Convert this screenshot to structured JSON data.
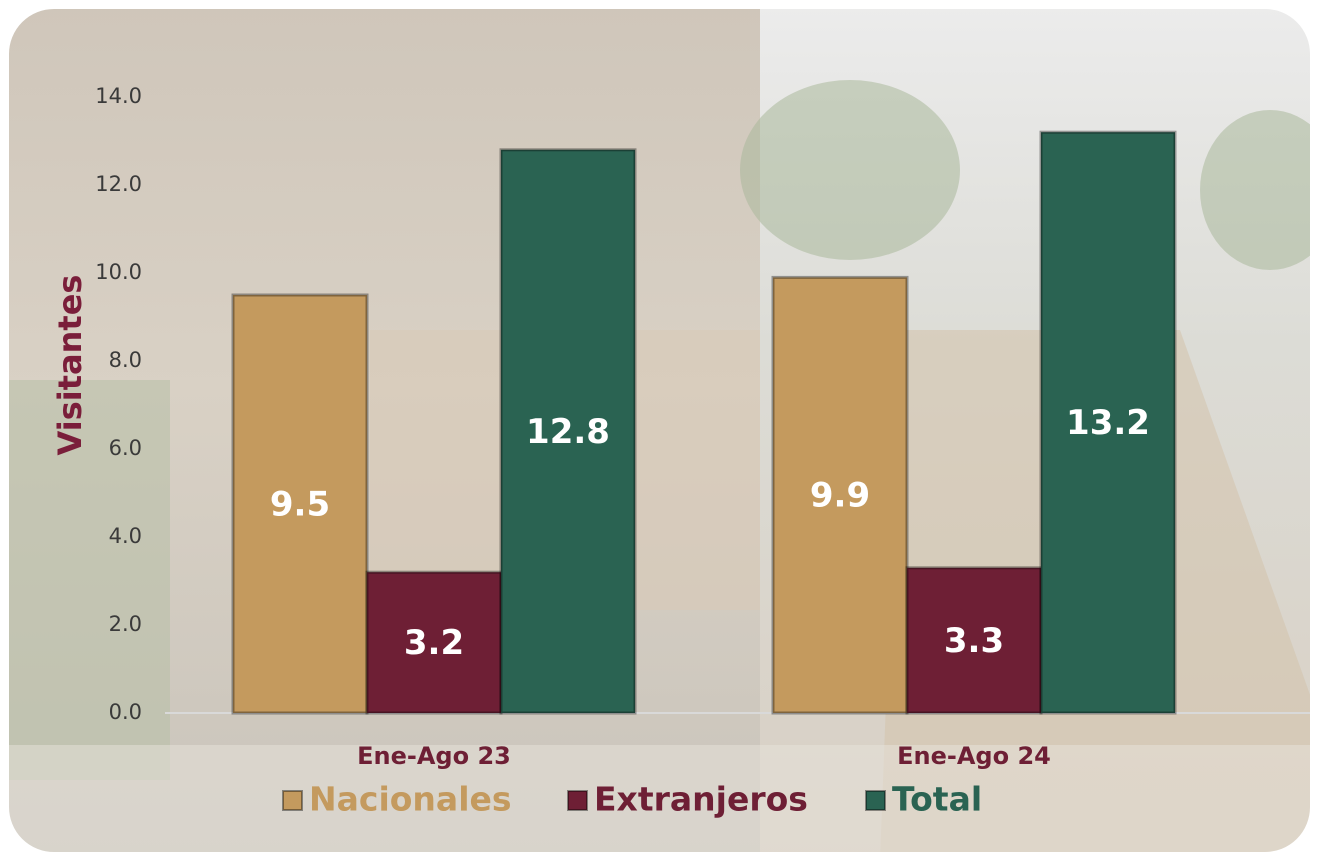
{
  "chart_data": {
    "type": "bar",
    "y_label": "Visitantes",
    "categories": [
      "Ene-Ago 23",
      "Ene-Ago 24"
    ],
    "series": [
      {
        "name": "Nacionales",
        "color": "#c49a5e",
        "values": [
          9.5,
          9.9
        ]
      },
      {
        "name": "Extranjeros",
        "color": "#6e1f35",
        "values": [
          3.2,
          3.3
        ]
      },
      {
        "name": "Total",
        "color": "#2a6352",
        "values": [
          12.8,
          13.2
        ]
      }
    ],
    "ylim": [
      0,
      14
    ],
    "yticks": [
      {
        "value": 0,
        "label": "0.0"
      },
      {
        "value": 2,
        "label": "2.0"
      },
      {
        "value": 4,
        "label": "4.0"
      },
      {
        "value": 6,
        "label": "6.0"
      },
      {
        "value": 8,
        "label": "8.0"
      },
      {
        "value": 10,
        "label": "10.0"
      },
      {
        "value": 12,
        "label": "12.0"
      },
      {
        "value": 14,
        "label": "14.0"
      }
    ],
    "grid": false,
    "legend": "bottom"
  }
}
